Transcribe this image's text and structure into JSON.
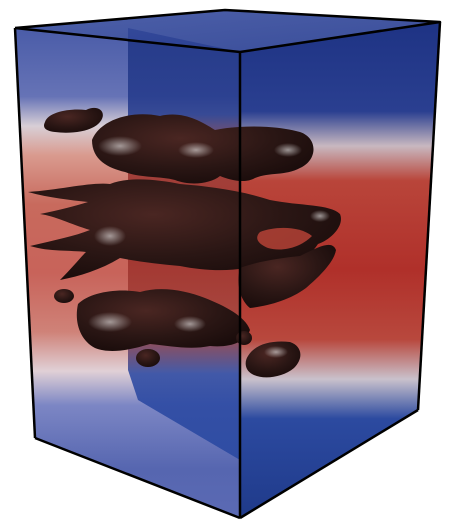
{
  "scene": {
    "subject": "volume-rendering-box",
    "colormap": {
      "low": "#2c3f8f",
      "mid": "#e8e2d9",
      "high": "#b83a2f",
      "back_plane_low": "#1f3a8a",
      "back_plane_high": "#b0302a"
    },
    "isosurface_color": "#2a1614",
    "edge_color": "#000000",
    "background": "#ffffff"
  }
}
